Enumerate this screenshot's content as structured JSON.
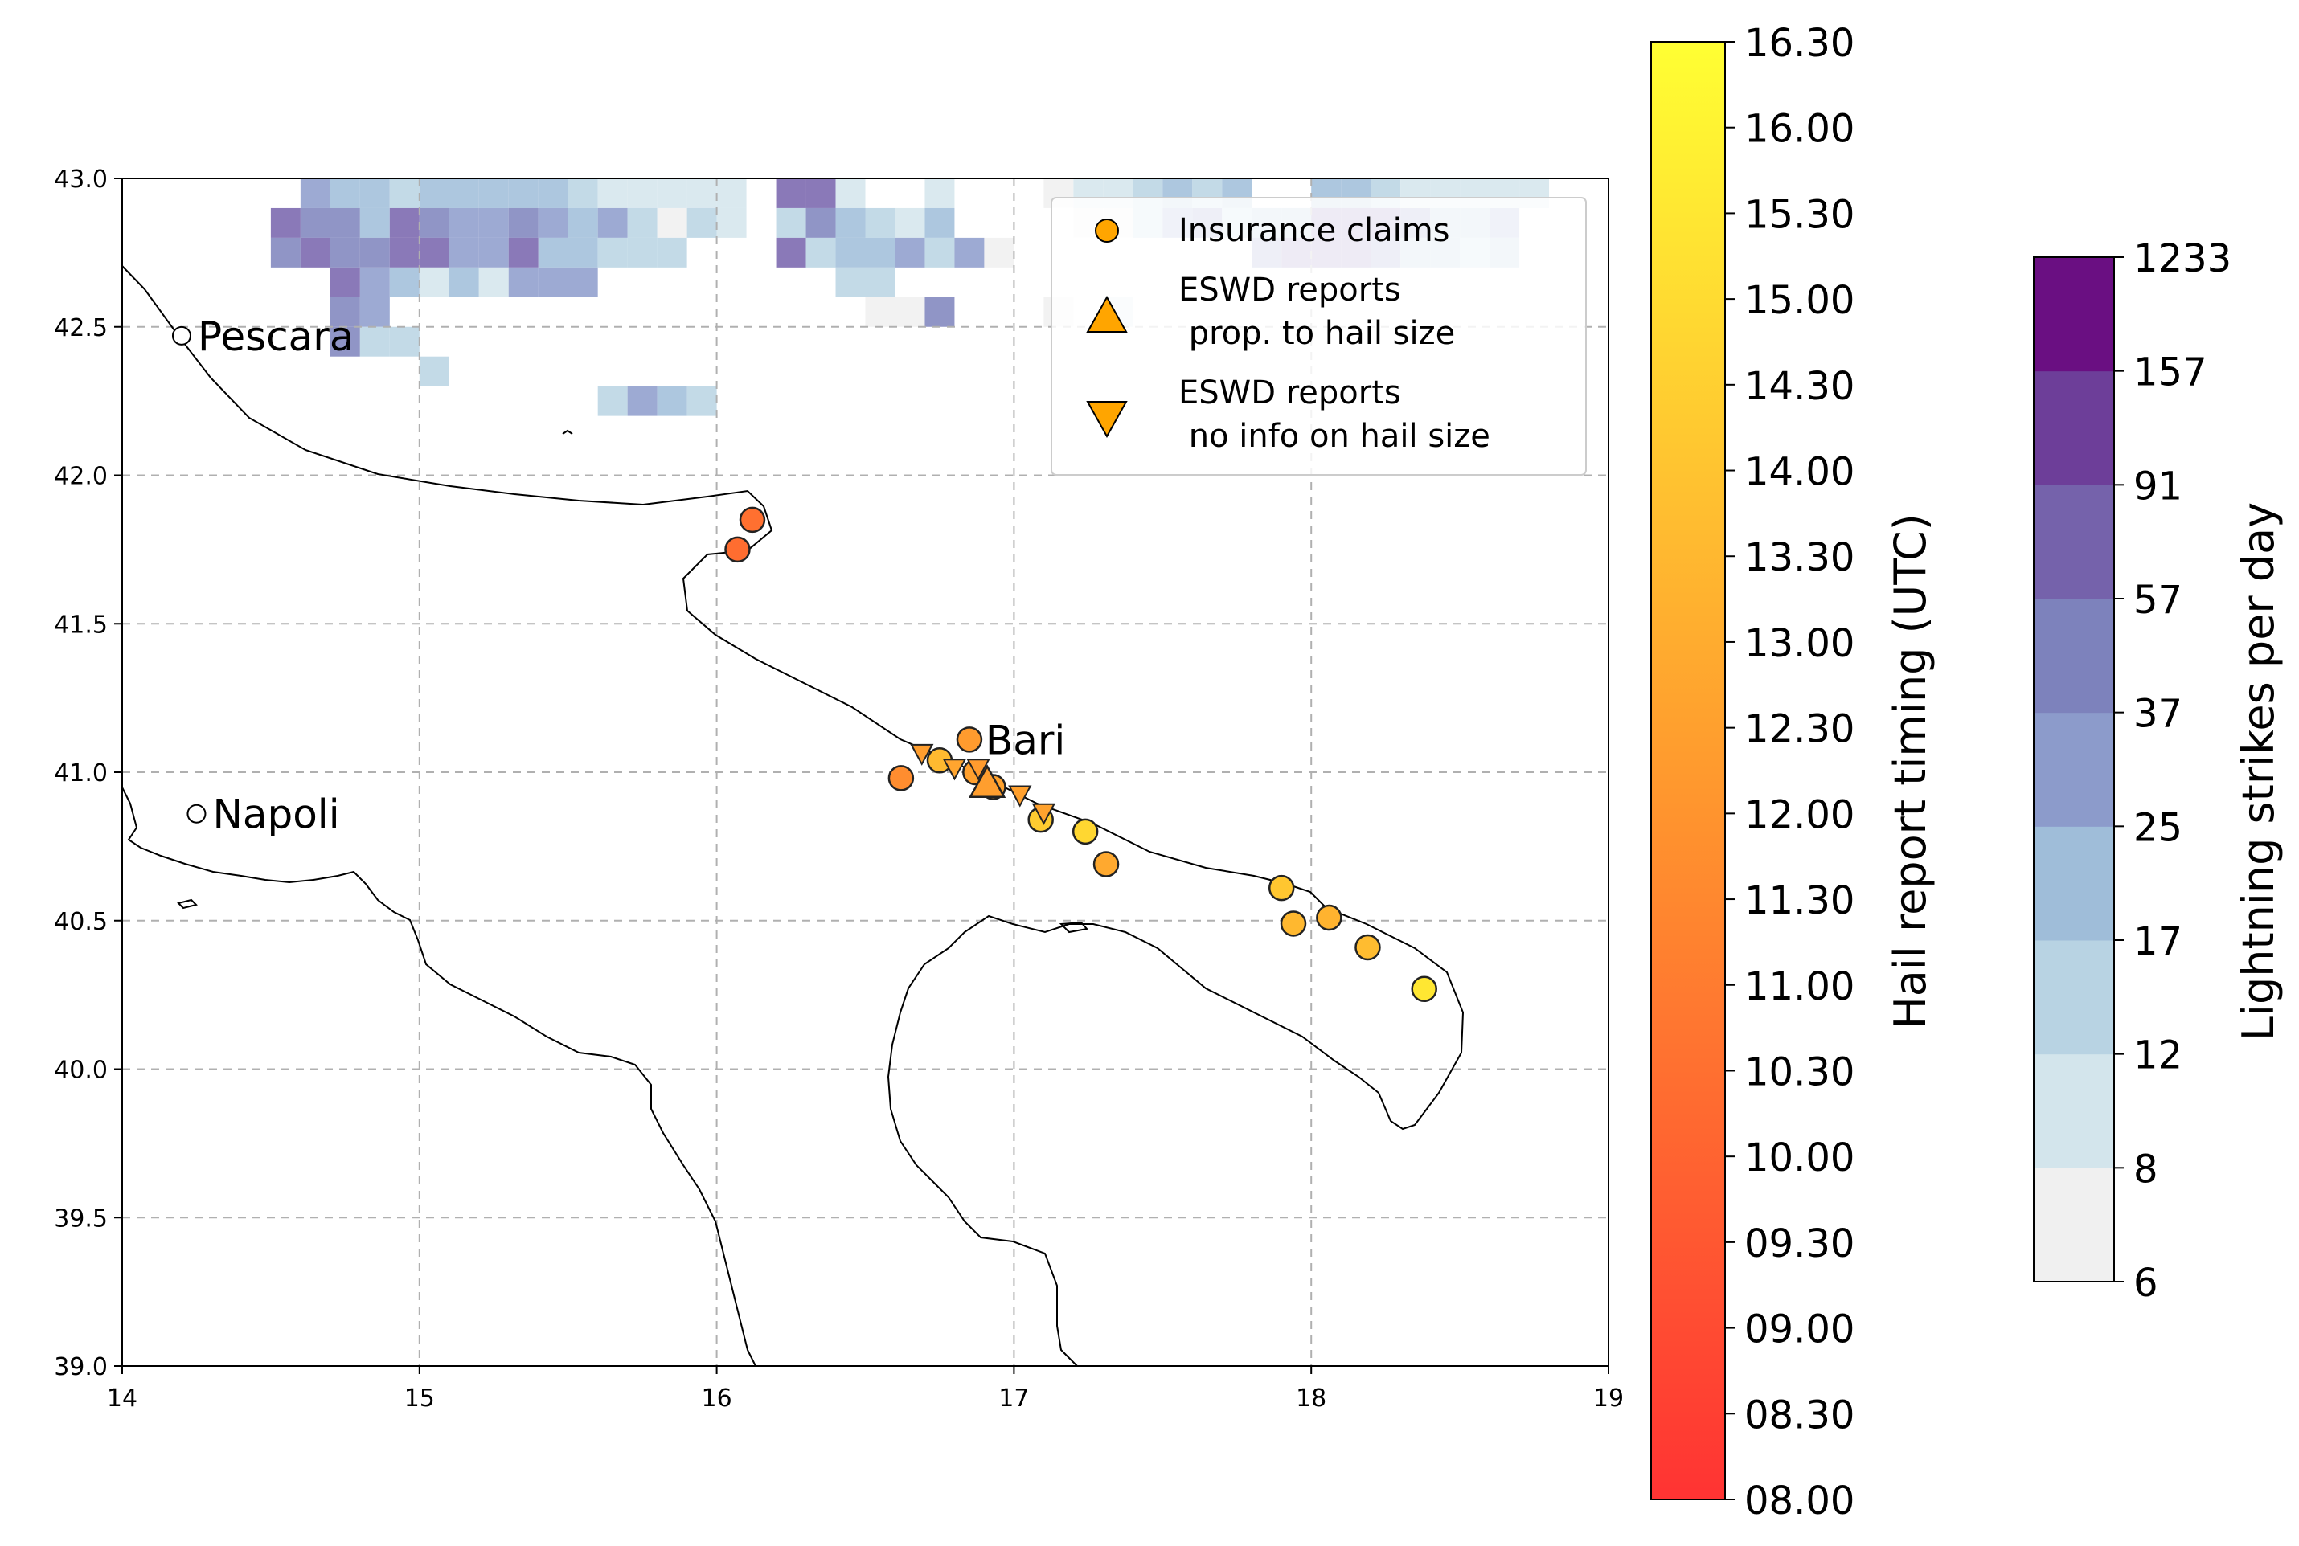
{
  "map": {
    "lon_range": [
      14,
      19
    ],
    "lat_range": [
      39,
      43
    ],
    "x_ticks": [
      "14",
      "15",
      "16",
      "17",
      "18",
      "19"
    ],
    "y_ticks": [
      "39.0",
      "39.5",
      "40.0",
      "40.5",
      "41.0",
      "41.5",
      "42.0",
      "42.5",
      "43.0"
    ],
    "grid": "dashed",
    "cities": [
      {
        "name": "Pescara",
        "lon": 14.2,
        "lat": 42.47
      },
      {
        "name": "Napoli",
        "lon": 14.25,
        "lat": 40.86
      },
      {
        "name": "Bari",
        "lon": 16.85,
        "lat": 41.11
      }
    ]
  },
  "legend": {
    "position": "top-right",
    "items": [
      {
        "label_lines": [
          "Insurance claims"
        ],
        "marker": "circle"
      },
      {
        "label_lines": [
          "ESWD reports",
          " prop. to hail size"
        ],
        "marker": "triangle-up"
      },
      {
        "label_lines": [
          "ESWD reports",
          " no info on hail size"
        ],
        "marker": "triangle-down"
      }
    ]
  },
  "colorbars": {
    "timing": {
      "label": "Hail report timing (UTC)",
      "ticks": [
        "08.00",
        "08.30",
        "09.00",
        "09.30",
        "10.00",
        "10.30",
        "11.00",
        "11.30",
        "12.00",
        "12.30",
        "13.00",
        "13.30",
        "14.00",
        "14.30",
        "15.00",
        "15.30",
        "16.00",
        "16.30"
      ],
      "color_low": "#ff3333",
      "color_mid": "#ff9a2e",
      "color_high": "#ffff33"
    },
    "lightning": {
      "label": "Lightning strikes per day",
      "ticks": [
        "6",
        "8",
        "12",
        "17",
        "25",
        "37",
        "57",
        "91",
        "157",
        "1233"
      ],
      "colors": [
        "#f0f0f0",
        "#d3e5ec",
        "#b8d3e3",
        "#9fbdd9",
        "#8c9bcb",
        "#7d82bc",
        "#7562ab",
        "#6d3e99",
        "#6a0f82"
      ]
    }
  },
  "chart_data": {
    "type": "scatter",
    "title": "",
    "xlabel": "",
    "ylabel": "",
    "xlim": [
      14,
      19
    ],
    "ylim": [
      39,
      43
    ],
    "series": [
      {
        "name": "Insurance claims",
        "marker": "circle",
        "points": [
          {
            "lon": 16.12,
            "lat": 41.85,
            "time": 10.5
          },
          {
            "lon": 16.07,
            "lat": 41.75,
            "time": 10.4
          },
          {
            "lon": 16.62,
            "lat": 40.98,
            "time": 11.7
          },
          {
            "lon": 16.75,
            "lat": 41.04,
            "time": 13.6
          },
          {
            "lon": 16.85,
            "lat": 41.11,
            "time": 12.3
          },
          {
            "lon": 16.87,
            "lat": 41.0,
            "time": 12.5
          },
          {
            "lon": 16.93,
            "lat": 40.95,
            "time": 12.6
          },
          {
            "lon": 17.09,
            "lat": 40.84,
            "time": 14.3
          },
          {
            "lon": 17.24,
            "lat": 40.8,
            "time": 14.8
          },
          {
            "lon": 17.31,
            "lat": 40.69,
            "time": 12.9
          },
          {
            "lon": 17.9,
            "lat": 40.61,
            "time": 14.1
          },
          {
            "lon": 17.94,
            "lat": 40.49,
            "time": 13.5
          },
          {
            "lon": 18.06,
            "lat": 40.51,
            "time": 13.3
          },
          {
            "lon": 18.19,
            "lat": 40.41,
            "time": 13.7
          },
          {
            "lon": 18.38,
            "lat": 40.27,
            "time": 15.5
          }
        ]
      },
      {
        "name": "ESWD reports prop. to hail size",
        "marker": "triangle-up",
        "points": [
          {
            "lon": 16.91,
            "lat": 40.96,
            "time": 12.4
          }
        ]
      },
      {
        "name": "ESWD reports no info on hail size",
        "marker": "triangle-down",
        "points": [
          {
            "lon": 16.69,
            "lat": 41.06,
            "time": 12.4
          },
          {
            "lon": 16.8,
            "lat": 41.01,
            "time": 12.7
          },
          {
            "lon": 16.88,
            "lat": 41.01,
            "time": 12.3
          },
          {
            "lon": 17.02,
            "lat": 40.92,
            "time": 12.5
          },
          {
            "lon": 17.1,
            "lat": 40.86,
            "time": 12.6
          }
        ]
      }
    ],
    "lightning_grid": {
      "lon_start": 14.0,
      "lat_top": 43.0,
      "cell_deg": 0.1,
      "row_order": "north_to_south",
      "legend_key": "0=none, 1..9 = colour classes 6-8, 8-12, 12-17, 17-25, 25-37, 37-57, 57-91, 91-157, 157-1233",
      "rows": [
        "00000054434444432222207720020001223434004432222200",
        "00000766476556545313203643240000113563447776445000",
        "00000676677557443330007344535100000000677764434000",
        "00000007542425550000000033000000000000000000000000",
        "00000006500000000000000001160001020000000000000000",
        "00000006330000000000000000000000000000000000000000",
        "00000000003000000000000000000000000000000000000000",
        "00000000000000003543000000000000000000000000000000",
        "00000000000000000000000000000000000000000000000000",
        "00000000000000000000000000000000000000000000000000",
        "00000000000000000000000000000000000000000000000000",
        "00000000000000000000000000000000000000000000000000",
        "00000000000000000000000000000000000000000000000000",
        "00000000000000000000000000000000000000000000000000",
        "00000000000000000000000000000000000000000000000000",
        "00000000000000000000000000000000000000000000000000",
        "00000000000000000000000000000000000000000000000000",
        "00000000000000000000000000000000000000000000000000",
        "00000000000000000000000000000000000000000000000000",
        "00000000000000000000000000000000000000000000000000",
        "00000000000000000000000000000000000000000000000000",
        "00000000000000000000000000000000000000000000000000",
        "00000000000000000000000000000000000000000000000000",
        "00000000000000000000000000000000000000000000000000",
        "00000000000000000000000000000000000000000000000000",
        "00000000000000000000000000000000000000000000000000",
        "00000000000000000000000000000000000000000000000000",
        "00000000000000000000000000000000000000000000000000",
        "00000000000000000000000000000000000000000000000000",
        "00000000000000000000000000000000000000000000000000",
        "00000000000000000000000000000000000000000000000000",
        "00000000000000000000000000000000000000000000000000",
        "00000000000000000000000000000000000000000000000000",
        "00000000000000000000000000000000000000000000000000",
        "00000000000000000000000000000000000000000000000000",
        "00000000000000000000000000000000000000000000000000",
        "00000000000000000000000000000000000000000000000000",
        "00000000000000000000000000000000000000000000000000",
        "00000000000000000000000000000000000000000000000000",
        "00000000000000000000000000000000000000000000000000"
      ]
    }
  }
}
